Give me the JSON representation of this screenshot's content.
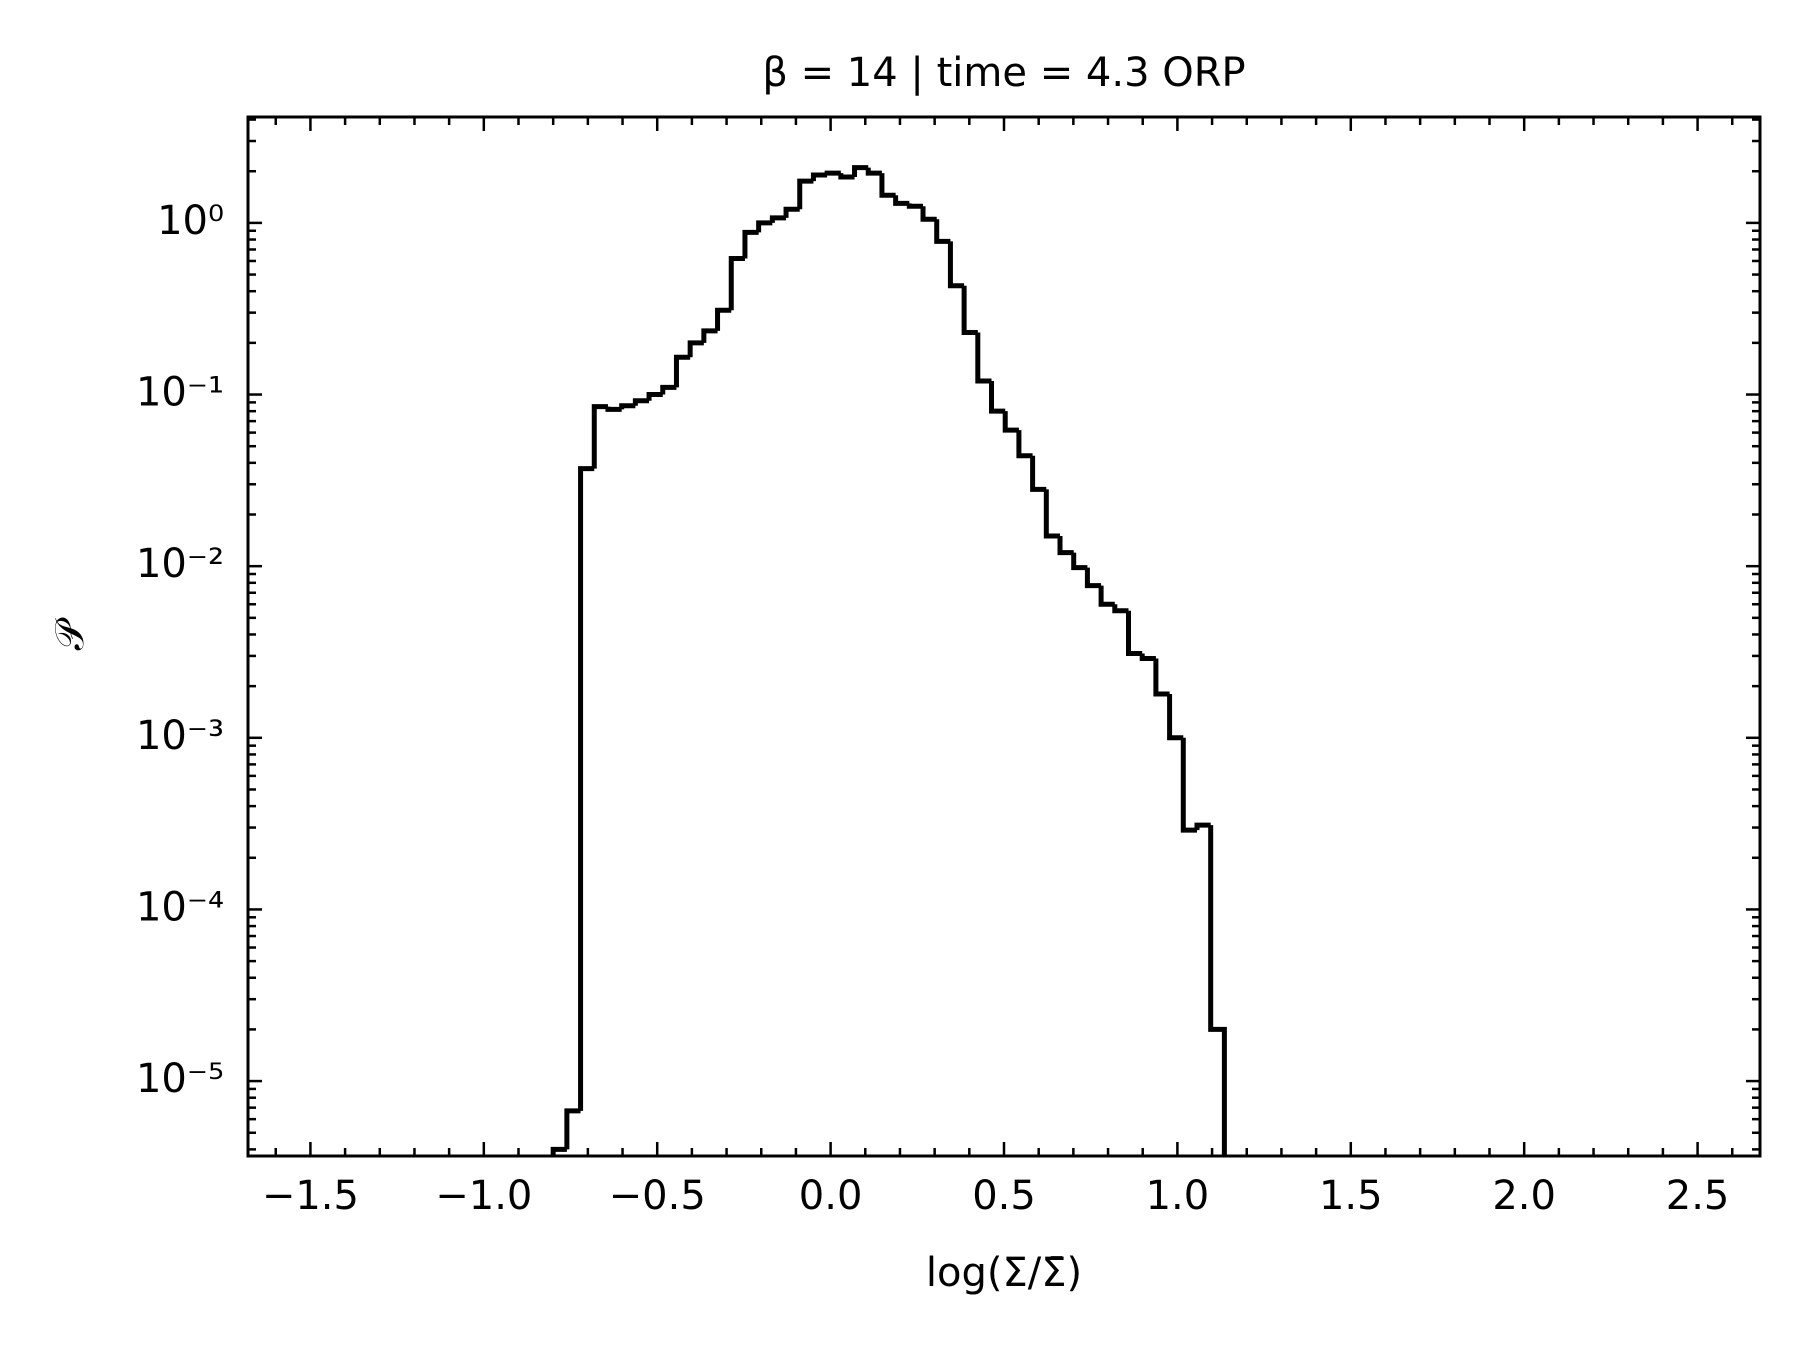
{
  "chart_data": {
    "type": "histogram",
    "title": "β = 14 | time = 4.3 ORP",
    "xlabel": "log(Σ/Σ̄)",
    "ylabel": "𝒫",
    "color": "#000000",
    "log_y": true,
    "bins": [
      -0.8,
      -0.7605,
      -0.721,
      -0.6815,
      -0.642,
      -0.6025,
      -0.563,
      -0.5235,
      -0.484,
      -0.4445,
      -0.405,
      -0.3655,
      -0.326,
      -0.2865,
      -0.247,
      -0.2075,
      -0.168,
      -0.1285,
      -0.089,
      -0.0495,
      -0.01,
      0.0295,
      0.069,
      0.1085,
      0.148,
      0.1875,
      0.227,
      0.2665,
      0.306,
      0.3455,
      0.385,
      0.4245,
      0.464,
      0.5035,
      0.543,
      0.5825,
      0.622,
      0.6615,
      0.701,
      0.7405,
      0.78,
      0.8195,
      0.859,
      0.8985,
      0.938,
      0.9775,
      1.017,
      1.0565,
      1.096,
      1.1355
    ],
    "values": [
      4e-06,
      6.7e-06,
      0.037,
      0.085,
      0.082,
      0.086,
      0.092,
      0.1,
      0.11,
      0.165,
      0.2,
      0.235,
      0.31,
      0.62,
      0.88,
      1.0,
      1.07,
      1.2,
      1.75,
      1.9,
      1.95,
      1.85,
      2.1,
      1.95,
      1.45,
      1.3,
      1.25,
      1.05,
      0.78,
      0.43,
      0.23,
      0.12,
      0.08,
      0.062,
      0.044,
      0.028,
      0.015,
      0.012,
      0.0098,
      0.0077,
      0.006,
      0.0055,
      0.0031,
      0.0029,
      0.0018,
      0.001,
      0.00029,
      0.00031,
      2e-05
    ],
    "xlim": [
      -1.68,
      2.68
    ],
    "xticks": [
      {
        "value": -1.5,
        "label": "−1.5"
      },
      {
        "value": -1.0,
        "label": "−1.0"
      },
      {
        "value": -0.5,
        "label": "−0.5"
      },
      {
        "value": 0.0,
        "label": "0.0"
      },
      0.5,
      {
        "value": 1.0,
        "label": "1.0"
      },
      1.5,
      {
        "value": 2.0,
        "label": "2.0"
      },
      2.5
    ],
    "ylim": [
      3.66e-06,
      4.14
    ],
    "yticks": [
      {
        "value": 1e-05,
        "label": "10⁻⁵"
      },
      {
        "value": 0.0001,
        "label": "10⁻⁴"
      },
      {
        "value": 0.001,
        "label": "10⁻³"
      },
      {
        "value": 0.01,
        "label": "10⁻²"
      },
      {
        "value": 0.1,
        "label": "10⁻¹"
      },
      {
        "value": 1,
        "label": "10⁰"
      }
    ]
  }
}
